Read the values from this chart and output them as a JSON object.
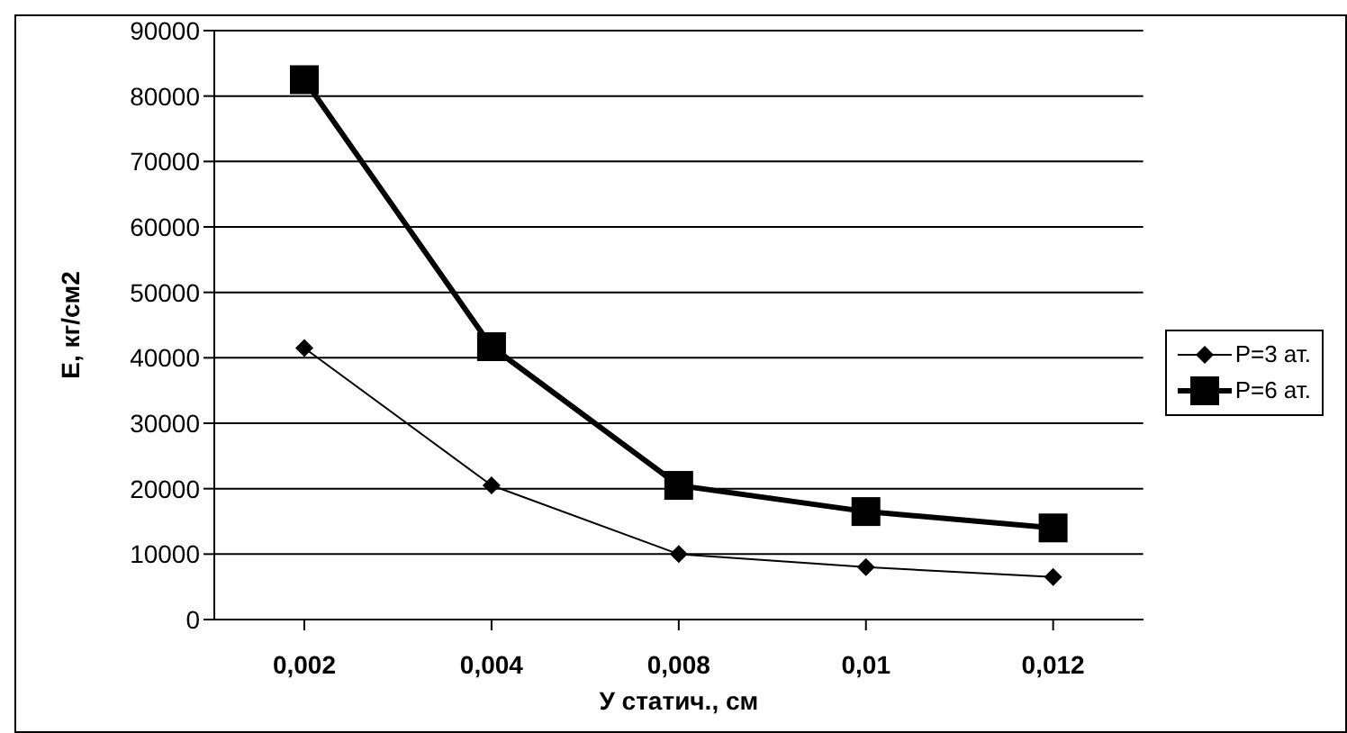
{
  "chart_data": {
    "type": "line",
    "xlabel": "У статич., см",
    "ylabel": "E, кг/см2",
    "categories": [
      "0,002",
      "0,004",
      "0,008",
      "0,01",
      "0,012"
    ],
    "series": [
      {
        "name": "P=3 ат.",
        "color": "#000000",
        "values": [
          41500,
          20500,
          10000,
          8000,
          6500
        ],
        "marker": "diamond"
      },
      {
        "name": "P=6 ат.",
        "color": "#000000",
        "values": [
          82500,
          41700,
          20500,
          16500,
          14000
        ],
        "marker": "square"
      }
    ],
    "ylim": [
      0,
      90000
    ],
    "yticks": [
      0,
      10000,
      20000,
      30000,
      40000,
      50000,
      60000,
      70000,
      80000,
      90000
    ],
    "grid": "y",
    "legend": "right"
  }
}
